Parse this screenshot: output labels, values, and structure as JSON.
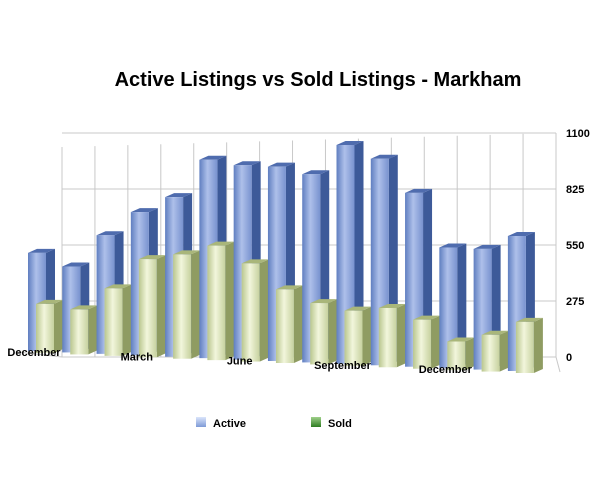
{
  "chart_data": {
    "type": "bar",
    "title": "Active Listings vs Sold Listings - Markham",
    "categories": [
      "December",
      "",
      "",
      "March",
      "",
      "",
      "June",
      "",
      "",
      "September",
      "",
      "",
      "December",
      "",
      ""
    ],
    "series": [
      {
        "name": "Active",
        "color": "#8ea6d8",
        "values": [
          480,
          420,
          580,
          700,
          780,
          970,
          950,
          950,
          920,
          1070,
          1010,
          850,
          590,
          590,
          660
        ]
      },
      {
        "name": "Sold",
        "color": "#d9e3b6",
        "values": [
          240,
          220,
          330,
          480,
          510,
          560,
          480,
          360,
          300,
          270,
          290,
          240,
          140,
          180,
          250
        ]
      }
    ],
    "yticks": [
      "1100",
      "825",
      "550",
      "275",
      "0"
    ],
    "ylim": [
      0,
      1100
    ],
    "grid": true,
    "legend": "bottom"
  }
}
